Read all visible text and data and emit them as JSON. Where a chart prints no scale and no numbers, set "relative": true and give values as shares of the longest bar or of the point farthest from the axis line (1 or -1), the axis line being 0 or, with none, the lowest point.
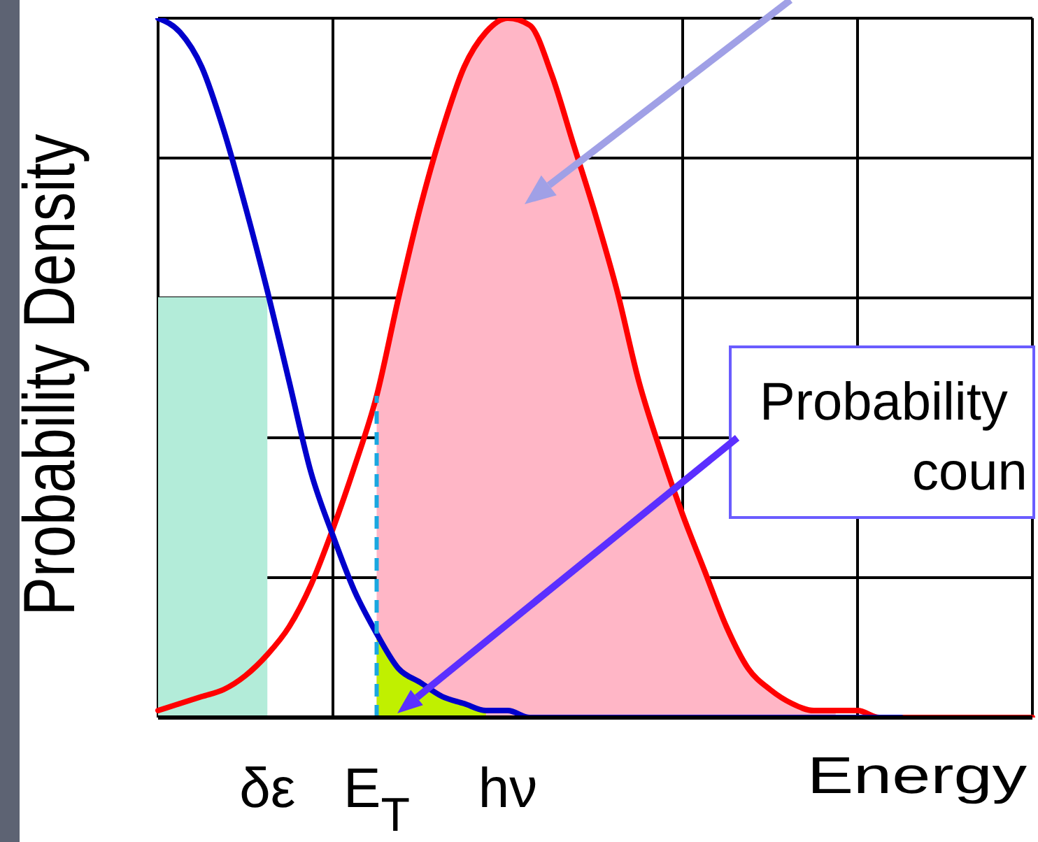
{
  "chart_data": {
    "type": "line",
    "relative": true,
    "grid": true,
    "xlabel": "Energy",
    "ylabel": "Probability Density",
    "categories": [
      null,
      null,
      null,
      null,
      null,
      "δε",
      null,
      null,
      null,
      null,
      "E$_{T}$",
      null,
      null,
      null,
      null,
      null,
      "hν",
      null,
      null,
      null,
      null,
      null,
      null,
      null,
      null,
      null,
      null,
      null,
      null,
      null,
      null,
      null,
      null,
      null,
      null,
      null,
      null,
      null,
      null,
      null,
      null
    ],
    "series": [
      {
        "type": "area",
        "color": "#b3ecd9",
        "values": [
          0.6,
          0.6,
          0.6,
          0.6,
          0.6,
          0.6,
          null,
          null,
          null,
          null,
          null,
          null,
          null,
          null,
          null,
          null,
          null,
          null,
          null,
          null,
          null,
          null,
          null,
          null,
          null,
          null,
          null,
          null,
          null,
          null,
          null,
          null,
          null,
          null,
          null,
          null,
          null,
          null,
          null,
          null,
          null
        ]
      },
      {
        "type": "area",
        "color": "#ffb6c6",
        "values": [
          null,
          null,
          null,
          null,
          null,
          null,
          null,
          null,
          null,
          null,
          0.46,
          0.6,
          0.73,
          0.84,
          0.93,
          0.98,
          1,
          0.99,
          0.92,
          0.82,
          0.72,
          0.61,
          0.48,
          0.38,
          0.29,
          0.21,
          0.13,
          0.07,
          0.04,
          0.02,
          0.01,
          0.01,
          null,
          null,
          null,
          null,
          null,
          null,
          null,
          null,
          null
        ]
      },
      {
        "type": "area",
        "color": "#c0f000",
        "values": [
          null,
          null,
          null,
          null,
          null,
          null,
          null,
          null,
          null,
          null,
          0.12,
          0.07,
          0.05,
          0.03,
          0.02,
          0.01,
          null,
          null,
          null,
          null,
          null,
          null,
          null,
          null,
          null,
          null,
          null,
          null,
          null,
          null,
          null,
          null,
          null,
          null,
          null,
          null,
          null,
          null,
          null,
          null,
          null
        ]
      },
      {
        "type": "line",
        "color": "#ff0000",
        "values": [
          0.01,
          0.02,
          0.03,
          0.04,
          0.06,
          0.09,
          0.13,
          0.19,
          0.27,
          0.36,
          0.46,
          0.6,
          0.73,
          0.84,
          0.93,
          0.98,
          1,
          0.99,
          0.92,
          0.82,
          0.72,
          0.61,
          0.48,
          0.38,
          0.29,
          0.21,
          0.13,
          0.07,
          0.04,
          0.02,
          0.01,
          0.01,
          0.01,
          0,
          0,
          0,
          0,
          0,
          0,
          0,
          0
        ]
      },
      {
        "type": "line",
        "color": "#0000cc",
        "values": [
          1,
          0.98,
          0.93,
          0.84,
          0.73,
          0.61,
          0.48,
          0.35,
          0.26,
          0.18,
          0.12,
          0.07,
          0.05,
          0.03,
          0.02,
          0.01,
          0.01,
          0,
          0,
          0,
          0,
          0,
          0,
          0,
          0,
          0,
          0,
          0,
          0,
          0,
          0,
          0,
          0,
          0,
          0,
          null,
          null,
          null,
          null,
          null,
          null
        ]
      }
    ],
    "ref_lines": [
      {
        "axis": "x",
        "value": "E$_{T}$",
        "color": "#1aa7e0",
        "line_style": "dashed"
      }
    ],
    "annotations": [
      "Probability\ncoun"
    ]
  }
}
